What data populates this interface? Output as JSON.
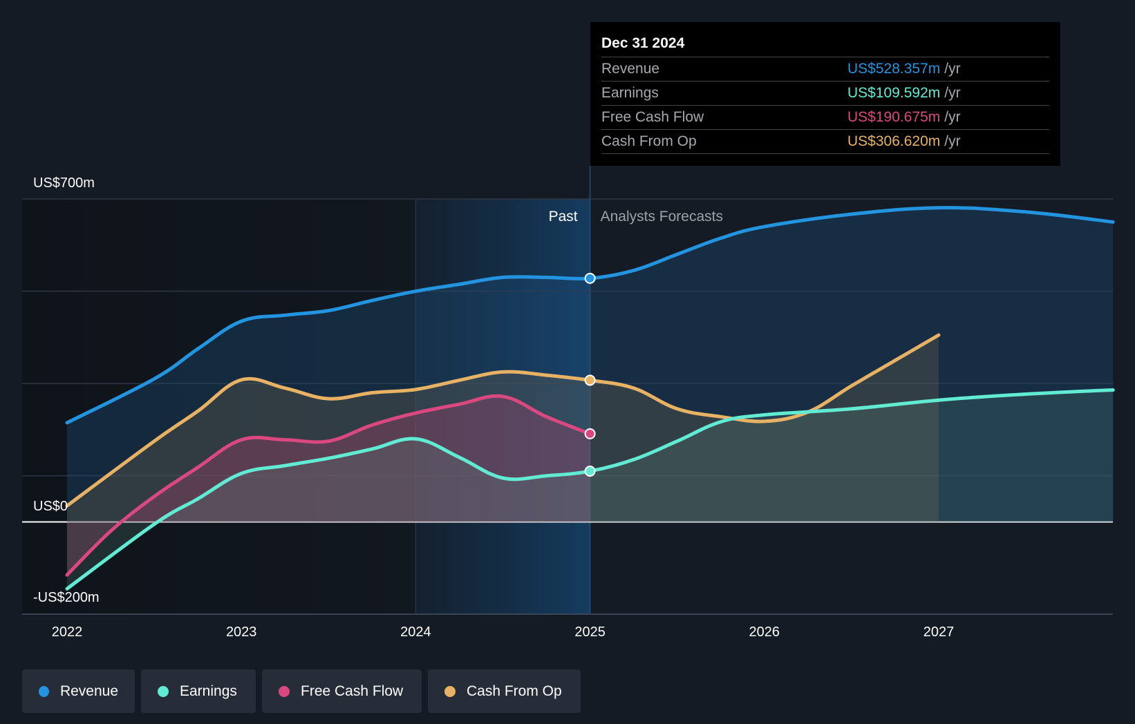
{
  "chart_data": {
    "type": "line",
    "x_ticks": [
      "2022",
      "2023",
      "2024",
      "2025",
      "2026",
      "2027"
    ],
    "y_labels": {
      "top": "US$700m",
      "zero": "US$0",
      "bottom": "-US$200m"
    },
    "ylim": [
      -200,
      700
    ],
    "xlim": [
      2021.9,
      2028.0
    ],
    "divider_x": 2025.0,
    "highlight_start": 2024.0,
    "period_labels": {
      "past": "Past",
      "forecast": "Analysts Forecasts"
    },
    "series": [
      {
        "name": "Revenue",
        "key": "revenue",
        "color": "#2394df",
        "points": [
          [
            2022.0,
            215
          ],
          [
            2022.5,
            310
          ],
          [
            2022.75,
            375
          ],
          [
            2023.0,
            435
          ],
          [
            2023.25,
            448
          ],
          [
            2023.5,
            458
          ],
          [
            2023.75,
            480
          ],
          [
            2024.0,
            500
          ],
          [
            2024.25,
            515
          ],
          [
            2024.5,
            530
          ],
          [
            2024.75,
            530
          ],
          [
            2025.0,
            528
          ],
          [
            2025.25,
            545
          ],
          [
            2025.5,
            580
          ],
          [
            2025.75,
            615
          ],
          [
            2026.0,
            640
          ],
          [
            2026.5,
            667
          ],
          [
            2027.0,
            681
          ],
          [
            2027.5,
            672
          ],
          [
            2028.0,
            650
          ]
        ]
      },
      {
        "name": "Earnings",
        "key": "earnings",
        "color": "#62ebd3",
        "points": [
          [
            2022.0,
            -145
          ],
          [
            2022.5,
            -5
          ],
          [
            2022.75,
            50
          ],
          [
            2023.0,
            105
          ],
          [
            2023.25,
            122
          ],
          [
            2023.5,
            138
          ],
          [
            2023.75,
            158
          ],
          [
            2024.0,
            180
          ],
          [
            2024.25,
            140
          ],
          [
            2024.5,
            95
          ],
          [
            2024.75,
            100
          ],
          [
            2025.0,
            110
          ],
          [
            2025.25,
            135
          ],
          [
            2025.5,
            175
          ],
          [
            2025.75,
            217
          ],
          [
            2026.0,
            232
          ],
          [
            2026.5,
            245
          ],
          [
            2027.0,
            264
          ],
          [
            2027.5,
            277
          ],
          [
            2028.0,
            286
          ]
        ]
      },
      {
        "name": "Free Cash Flow",
        "key": "fcf",
        "color": "#d9487f",
        "points": [
          [
            2022.0,
            -115
          ],
          [
            2022.25,
            -20
          ],
          [
            2022.5,
            55
          ],
          [
            2022.75,
            118
          ],
          [
            2023.0,
            178
          ],
          [
            2023.25,
            178
          ],
          [
            2023.5,
            175
          ],
          [
            2023.75,
            210
          ],
          [
            2024.0,
            236
          ],
          [
            2024.25,
            255
          ],
          [
            2024.5,
            272
          ],
          [
            2024.75,
            228
          ],
          [
            2025.0,
            191
          ]
        ]
      },
      {
        "name": "Cash From Op",
        "key": "cfo",
        "color": "#e8b264",
        "points": [
          [
            2022.0,
            35
          ],
          [
            2022.5,
            175
          ],
          [
            2022.75,
            240
          ],
          [
            2023.0,
            308
          ],
          [
            2023.25,
            290
          ],
          [
            2023.5,
            267
          ],
          [
            2023.75,
            280
          ],
          [
            2024.0,
            287
          ],
          [
            2024.25,
            307
          ],
          [
            2024.5,
            325
          ],
          [
            2024.75,
            318
          ],
          [
            2025.0,
            307
          ],
          [
            2025.25,
            290
          ],
          [
            2025.5,
            245
          ],
          [
            2025.75,
            228
          ],
          [
            2026.0,
            218
          ],
          [
            2026.25,
            238
          ],
          [
            2026.5,
            295
          ],
          [
            2026.75,
            350
          ],
          [
            2027.0,
            405
          ]
        ]
      }
    ],
    "tooltip": {
      "date": "Dec 31 2024",
      "rows": [
        {
          "label": "Revenue",
          "value": "US$528.357m",
          "unit": "/yr",
          "color": "#2394df"
        },
        {
          "label": "Earnings",
          "value": "US$109.592m",
          "unit": "/yr",
          "color": "#62ebd3"
        },
        {
          "label": "Free Cash Flow",
          "value": "US$190.675m",
          "unit": "/yr",
          "color": "#d9487f"
        },
        {
          "label": "Cash From Op",
          "value": "US$306.620m",
          "unit": "/yr",
          "color": "#e8b264"
        }
      ]
    },
    "legend": [
      {
        "label": "Revenue",
        "color": "#2394df"
      },
      {
        "label": "Earnings",
        "color": "#62ebd3"
      },
      {
        "label": "Free Cash Flow",
        "color": "#d9487f"
      },
      {
        "label": "Cash From Op",
        "color": "#e8b264"
      }
    ]
  }
}
